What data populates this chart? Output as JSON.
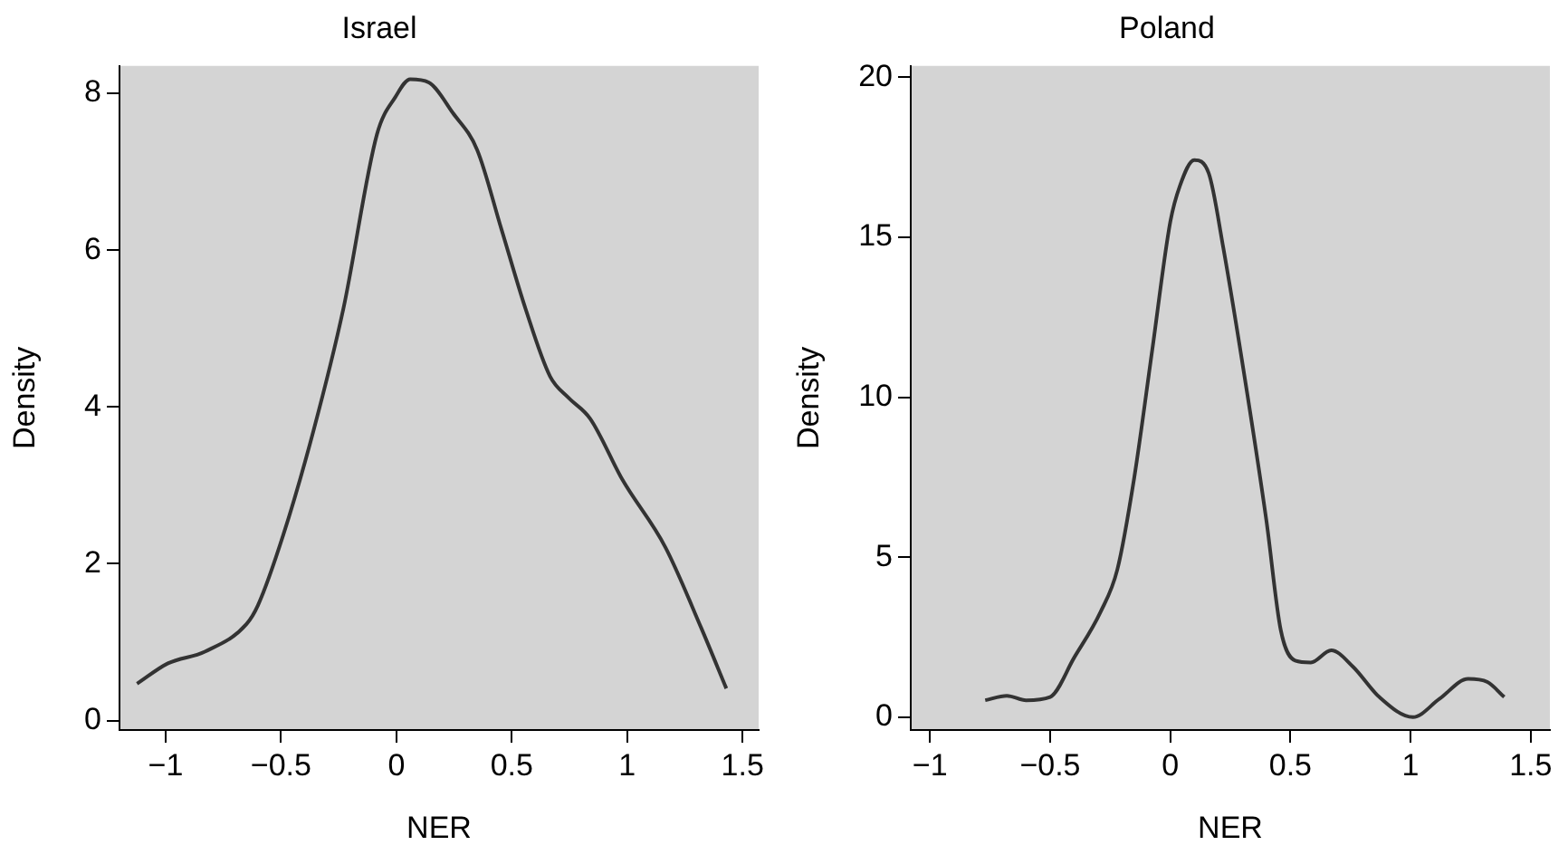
{
  "chart_data": [
    {
      "type": "line",
      "title": "Israel",
      "xlabel": "NER",
      "ylabel": "Density",
      "color": "#333333",
      "x": [
        -1.124,
        -0.99,
        -0.83,
        -0.65,
        -0.6,
        -0.49,
        -0.36,
        -0.23,
        -0.084,
        -0.005,
        0.06,
        0.14,
        0.245,
        0.35,
        0.455,
        0.56,
        0.666,
        0.745,
        0.84,
        0.98,
        1.166,
        1.32,
        1.43
      ],
      "values": [
        0.47,
        0.73,
        0.88,
        1.23,
        1.47,
        2.37,
        3.69,
        5.25,
        7.48,
        7.95,
        8.18,
        8.14,
        7.75,
        7.28,
        6.27,
        5.25,
        4.39,
        4.12,
        3.85,
        3.07,
        2.21,
        1.19,
        0.41
      ],
      "xlim": [
        -1.2,
        1.57
      ],
      "ylim": [
        -0.12,
        8.35
      ],
      "xticks": [
        -1,
        -0.5,
        0,
        0.5,
        1,
        1.5
      ],
      "yticks": [
        0,
        2,
        4,
        6,
        8
      ]
    },
    {
      "type": "line",
      "title": "Poland",
      "xlabel": "NER",
      "ylabel": "Density",
      "color": "#333333",
      "x": [
        -0.77,
        -0.68,
        -0.6,
        -0.5,
        -0.4,
        -0.29,
        -0.22,
        -0.15,
        -0.075,
        0,
        0.04,
        0.1,
        0.16,
        0.22,
        0.32,
        0.4,
        0.46,
        0.52,
        0.585,
        0.67,
        0.76,
        0.87,
        1.01,
        1.12,
        1.24,
        1.32,
        1.39
      ],
      "values": [
        0.53,
        0.67,
        0.53,
        0.63,
        1.86,
        3.29,
        4.62,
        7.48,
        11.47,
        15.47,
        16.6,
        17.41,
        17.0,
        14.7,
        10.13,
        6.15,
        2.72,
        1.77,
        1.71,
        2.09,
        1.58,
        0.63,
        0.0,
        0.57,
        1.2,
        1.1,
        0.63
      ],
      "xlim": [
        -1.08,
        1.58
      ],
      "ylim": [
        -0.4,
        20.35
      ],
      "xticks": [
        -1,
        -0.5,
        0,
        0.5,
        1,
        1.5
      ],
      "yticks": [
        0,
        5,
        10,
        15,
        20
      ]
    }
  ]
}
